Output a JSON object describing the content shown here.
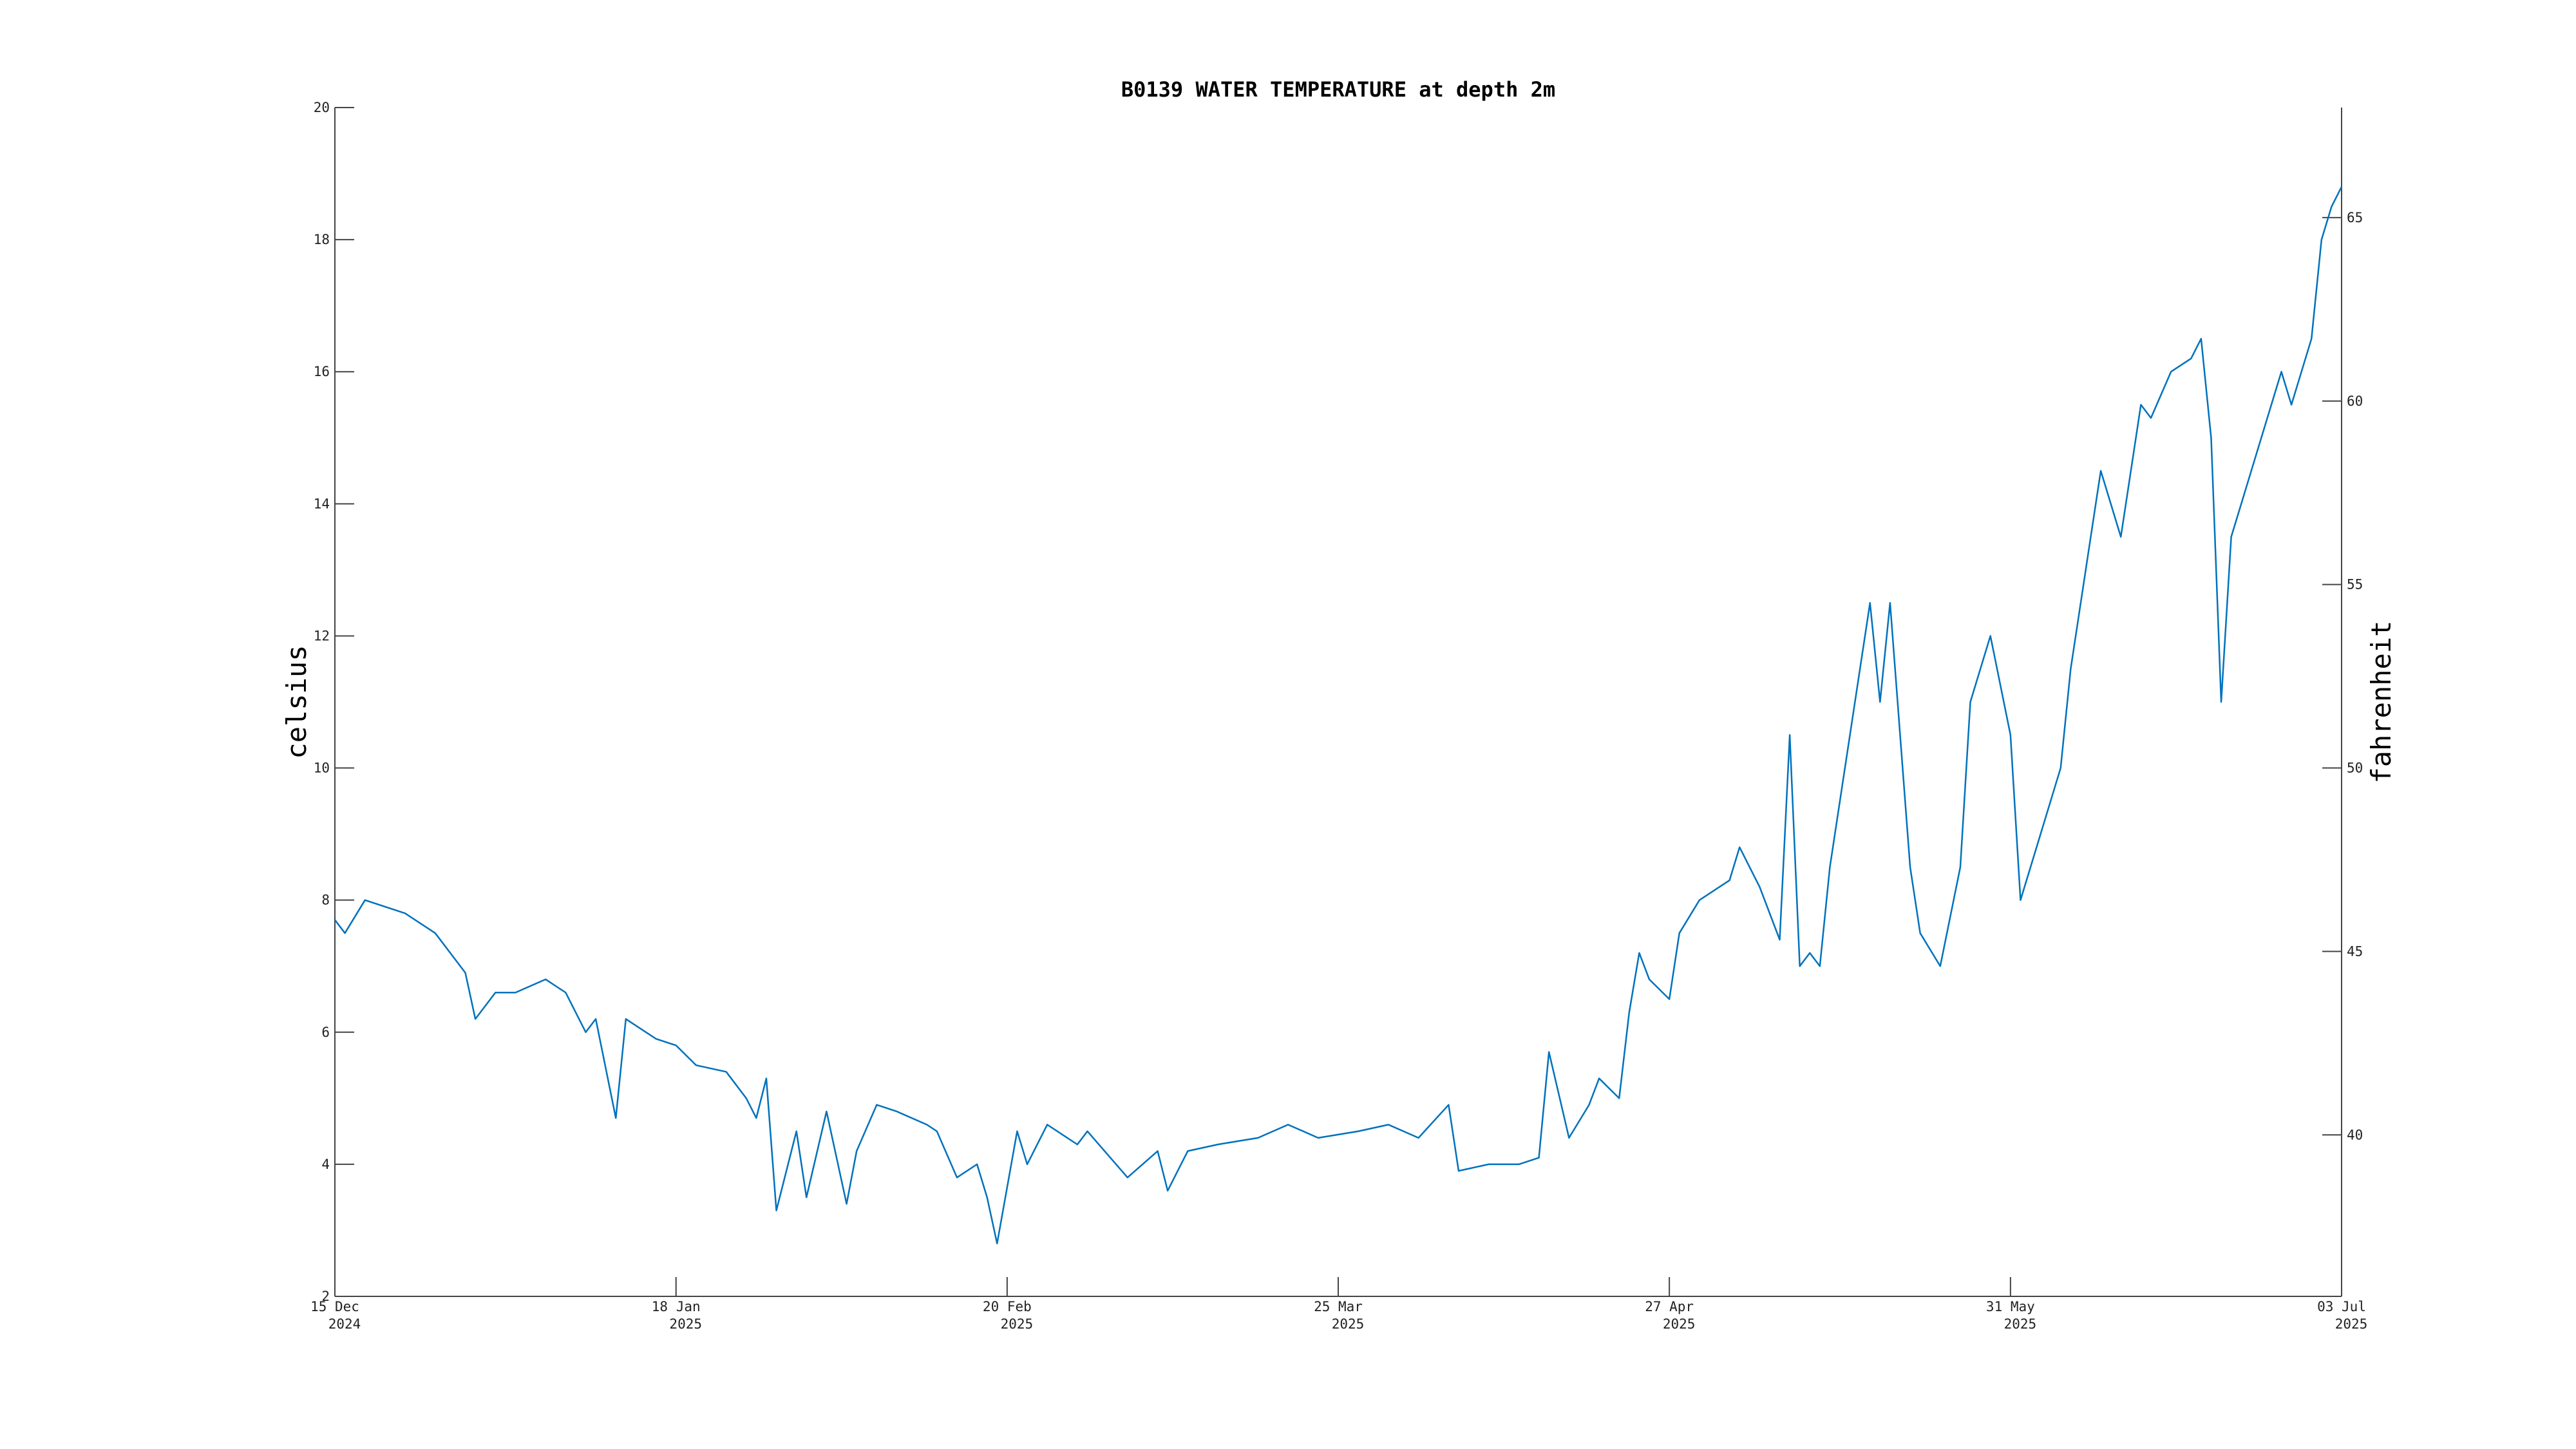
{
  "chart_data": {
    "type": "line",
    "title": "B0139 WATER TEMPERATURE at depth 2m",
    "ylabel": "celsius",
    "y2label": "fahrenheit",
    "color": "#0072bd",
    "x": [
      "2024-12-15",
      "2024-12-16",
      "2024-12-18",
      "2024-12-22",
      "2024-12-25",
      "2024-12-28",
      "2024-12-29",
      "2024-12-31",
      "2025-01-02",
      "2025-01-05",
      "2025-01-07",
      "2025-01-09",
      "2025-01-10",
      "2025-01-12",
      "2025-01-13",
      "2025-01-16",
      "2025-01-18",
      "2025-01-20",
      "2025-01-23",
      "2025-01-25",
      "2025-01-26",
      "2025-01-27",
      "2025-01-28",
      "2025-01-30",
      "2025-01-31",
      "2025-02-02",
      "2025-02-04",
      "2025-02-05",
      "2025-02-07",
      "2025-02-09",
      "2025-02-12",
      "2025-02-13",
      "2025-02-15",
      "2025-02-17",
      "2025-02-18",
      "2025-02-19",
      "2025-02-21",
      "2025-02-22",
      "2025-02-24",
      "2025-02-27",
      "2025-02-28",
      "2025-03-04",
      "2025-03-07",
      "2025-03-08",
      "2025-03-10",
      "2025-03-13",
      "2025-03-17",
      "2025-03-20",
      "2025-03-23",
      "2025-03-27",
      "2025-03-30",
      "2025-04-02",
      "2025-04-05",
      "2025-04-06",
      "2025-04-09",
      "2025-04-12",
      "2025-04-14",
      "2025-04-15",
      "2025-04-17",
      "2025-04-19",
      "2025-04-20",
      "2025-04-22",
      "2025-04-23",
      "2025-04-24",
      "2025-04-25",
      "2025-04-27",
      "2025-04-28",
      "2025-04-30",
      "2025-05-03",
      "2025-05-04",
      "2025-05-06",
      "2025-05-08",
      "2025-05-09",
      "2025-05-10",
      "2025-05-11",
      "2025-05-12",
      "2025-05-13",
      "2025-05-15",
      "2025-05-17",
      "2025-05-18",
      "2025-05-19",
      "2025-05-21",
      "2025-05-22",
      "2025-05-24",
      "2025-05-26",
      "2025-05-27",
      "2025-05-29",
      "2025-05-31",
      "2025-06-01",
      "2025-06-03",
      "2025-06-05",
      "2025-06-06",
      "2025-06-08",
      "2025-06-09",
      "2025-06-11",
      "2025-06-13",
      "2025-06-14",
      "2025-06-16",
      "2025-06-18",
      "2025-06-19",
      "2025-06-20",
      "2025-06-21",
      "2025-06-22",
      "2025-06-23",
      "2025-06-25",
      "2025-06-27",
      "2025-06-28",
      "2025-06-30",
      "2025-07-01",
      "2025-07-02",
      "2025-07-03"
    ],
    "values": [
      7.7,
      7.5,
      8.0,
      7.8,
      7.5,
      6.9,
      6.2,
      6.6,
      6.6,
      6.8,
      6.6,
      6.0,
      6.2,
      4.7,
      6.2,
      5.9,
      5.8,
      5.5,
      5.4,
      5.0,
      4.7,
      5.3,
      3.3,
      4.5,
      3.5,
      4.8,
      3.4,
      4.2,
      4.9,
      4.8,
      4.6,
      4.5,
      3.8,
      4.0,
      3.5,
      2.8,
      4.5,
      4.0,
      4.6,
      4.3,
      4.5,
      3.8,
      4.2,
      3.6,
      4.2,
      4.3,
      4.4,
      4.6,
      4.4,
      4.5,
      4.6,
      4.4,
      4.9,
      3.9,
      4.0,
      4.0,
      4.1,
      5.7,
      4.4,
      4.9,
      5.3,
      5.0,
      6.3,
      7.2,
      6.8,
      6.5,
      7.5,
      8.0,
      8.3,
      8.8,
      8.2,
      7.4,
      10.5,
      7.0,
      7.2,
      7.0,
      8.5,
      10.5,
      12.5,
      11.0,
      12.5,
      8.5,
      7.5,
      7.0,
      8.5,
      11.0,
      12.0,
      10.5,
      8.0,
      9.0,
      10.0,
      11.5,
      13.5,
      14.5,
      13.5,
      15.5,
      15.3,
      16.0,
      16.2,
      16.5,
      15.0,
      11.0,
      13.5,
      14.0,
      15.0,
      16.0,
      15.5,
      16.5,
      18.0,
      18.5,
      18.8
    ],
    "xlim": [
      "2024-12-15",
      "2025-07-03"
    ],
    "xticks": [
      {
        "value": "2024-12-15",
        "label": [
          "15 Dec",
          "2024"
        ]
      },
      {
        "value": "2025-01-18",
        "label": [
          "18 Jan",
          "2025"
        ]
      },
      {
        "value": "2025-02-20",
        "label": [
          "20 Feb",
          "2025"
        ]
      },
      {
        "value": "2025-03-25",
        "label": [
          "25 Mar",
          "2025"
        ]
      },
      {
        "value": "2025-04-27",
        "label": [
          "27 Apr",
          "2025"
        ]
      },
      {
        "value": "2025-05-31",
        "label": [
          "31 May",
          "2025"
        ]
      },
      {
        "value": "2025-07-03",
        "label": [
          "03 Jul",
          "2025"
        ]
      }
    ],
    "ylim": [
      2,
      20
    ],
    "yticks": [
      2,
      4,
      6,
      8,
      10,
      12,
      14,
      16,
      18,
      20
    ],
    "y2lim": [
      35.6,
      68
    ],
    "y2ticks": [
      40,
      45,
      50,
      55,
      60,
      65
    ]
  }
}
